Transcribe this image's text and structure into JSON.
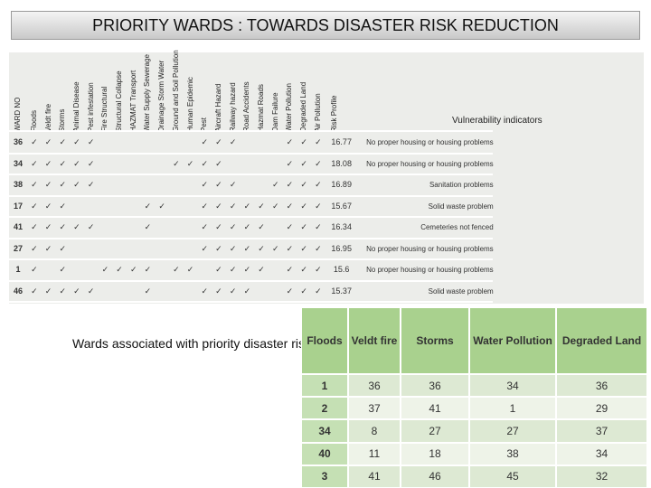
{
  "header": {
    "title": "PRIORITY WARDS : TOWARDS DISASTER RISK REDUCTION"
  },
  "matrix": {
    "columns": [
      "WARD NO",
      "Floods",
      "Veldt fire",
      "Storms",
      "Animal Disease",
      "Pest infestation",
      "Fire Structural",
      "Structural Collapse",
      "HAZMAT Transport",
      "Water Supply Sewerage",
      "Drainage Storm Water",
      "Ground and Soil Pollution",
      "Human Epidemic",
      "Pest",
      "Aircraft Hazard",
      "Railway hazard",
      "Road Accidents",
      "Hazmat Roads",
      "Dam Failure",
      "Water Pollution",
      "Degraded Land",
      "Air Pollution",
      "Risk Profile",
      "Vulnerability indicators"
    ],
    "rows": [
      {
        "ward": 36,
        "checks": [
          "✓",
          "✓",
          "✓",
          "✓",
          "✓",
          null,
          null,
          null,
          null,
          null,
          null,
          null,
          "✓",
          "✓",
          "✓",
          null,
          null,
          null,
          "✓",
          "✓",
          "✓"
        ],
        "risk": 16.77,
        "indicator": "No proper housing or housing problems"
      },
      {
        "ward": 34,
        "checks": [
          "✓",
          "✓",
          "✓",
          "✓",
          "✓",
          null,
          null,
          null,
          null,
          null,
          "✓",
          "✓",
          "✓",
          "✓",
          null,
          null,
          null,
          null,
          "✓",
          "✓",
          "✓"
        ],
        "risk": 18.08,
        "indicator": "No proper housing or housing problems"
      },
      {
        "ward": 38,
        "checks": [
          "✓",
          "✓",
          "✓",
          "✓",
          "✓",
          null,
          null,
          null,
          null,
          null,
          null,
          null,
          "✓",
          "✓",
          "✓",
          null,
          null,
          "✓",
          "✓",
          "✓",
          "✓"
        ],
        "risk": 16.89,
        "indicator": "Sanitation problems"
      },
      {
        "ward": 17,
        "checks": [
          "✓",
          "✓",
          "✓",
          null,
          null,
          null,
          null,
          null,
          "✓",
          "✓",
          null,
          null,
          "✓",
          "✓",
          "✓",
          "✓",
          "✓",
          "✓",
          "✓",
          "✓",
          "✓"
        ],
        "risk": 15.67,
        "indicator": "Solid waste problem"
      },
      {
        "ward": 41,
        "checks": [
          "✓",
          "✓",
          "✓",
          "✓",
          "✓",
          null,
          null,
          null,
          "✓",
          null,
          null,
          null,
          "✓",
          "✓",
          "✓",
          "✓",
          "✓",
          null,
          "✓",
          "✓",
          "✓"
        ],
        "risk": 16.34,
        "indicator": "Cemeteries not fenced"
      },
      {
        "ward": 27,
        "checks": [
          "✓",
          "✓",
          "✓",
          null,
          null,
          null,
          null,
          null,
          null,
          null,
          null,
          null,
          "✓",
          "✓",
          "✓",
          "✓",
          "✓",
          "✓",
          "✓",
          "✓",
          "✓"
        ],
        "risk": 16.95,
        "indicator": "No proper housing or housing problems"
      },
      {
        "ward": 1,
        "checks": [
          "✓",
          null,
          "✓",
          null,
          null,
          "✓",
          "✓",
          "✓",
          "✓",
          null,
          "✓",
          "✓",
          null,
          "✓",
          "✓",
          "✓",
          "✓",
          null,
          "✓",
          "✓",
          "✓"
        ],
        "risk": 15.6,
        "indicator": "No proper housing or housing problems"
      },
      {
        "ward": 46,
        "checks": [
          "✓",
          "✓",
          "✓",
          "✓",
          "✓",
          null,
          null,
          null,
          "✓",
          null,
          null,
          null,
          "✓",
          "✓",
          "✓",
          "✓",
          null,
          null,
          "✓",
          "✓",
          "✓"
        ],
        "risk": 15.37,
        "indicator": "Solid waste problem"
      }
    ]
  },
  "caption": "Wards associated with priority disaster risk",
  "table": {
    "header": [
      "Floods",
      "Veldt fire",
      "Storms",
      "Water Pollution",
      "Degraded Land"
    ],
    "rows": [
      [
        1,
        36,
        36,
        34,
        36
      ],
      [
        2,
        37,
        41,
        1,
        29
      ],
      [
        34,
        8,
        27,
        27,
        37
      ],
      [
        40,
        11,
        18,
        38,
        34
      ],
      [
        3,
        41,
        46,
        45,
        32
      ]
    ]
  }
}
